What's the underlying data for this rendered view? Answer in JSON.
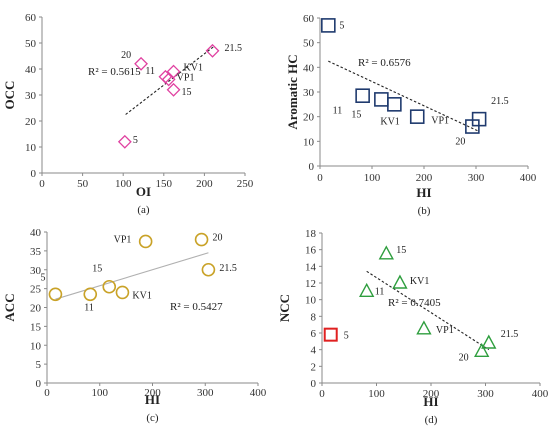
{
  "chart_data": [
    {
      "panel": "(a)",
      "type": "scatter",
      "xlabel": "OI",
      "ylabel": "OCC",
      "xlim": [
        0,
        250
      ],
      "ylim": [
        0,
        60
      ],
      "xticks": [
        "0",
        "50",
        "100",
        "150",
        "200",
        "250"
      ],
      "yticks": [
        "0",
        "10",
        "20",
        "30",
        "40",
        "50",
        "60"
      ],
      "marker": "diamond",
      "color": "#e040a0",
      "points": [
        {
          "label": "5",
          "x": 102,
          "y": 12
        },
        {
          "label": "20",
          "x": 122,
          "y": 42
        },
        {
          "label": "11",
          "x": 152,
          "y": 37
        },
        {
          "label": "KV1",
          "x": 162,
          "y": 39
        },
        {
          "label": "VP1",
          "x": 156,
          "y": 36
        },
        {
          "label": "15",
          "x": 162,
          "y": 32
        },
        {
          "label": "21.5",
          "x": 210,
          "y": 47
        }
      ],
      "trendline": {
        "x": [
          103,
          211
        ],
        "y": [
          22.5,
          48.5
        ]
      },
      "r2": "R² = 0.5615"
    },
    {
      "panel": "(b)",
      "type": "scatter",
      "xlabel": "HI",
      "ylabel": "Aromatic HC",
      "xlim": [
        0,
        400
      ],
      "ylim": [
        0,
        60
      ],
      "xticks": [
        "0",
        "100",
        "200",
        "300",
        "400"
      ],
      "yticks": [
        "0",
        "10",
        "20",
        "30",
        "40",
        "50",
        "60"
      ],
      "marker": "square",
      "color": "#1f3a6e",
      "points": [
        {
          "label": "5",
          "x": 16,
          "y": 57
        },
        {
          "label": "11",
          "x": 82,
          "y": 28.5
        },
        {
          "label": "15",
          "x": 118,
          "y": 27
        },
        {
          "label": "KV1",
          "x": 143,
          "y": 25
        },
        {
          "label": "VP1",
          "x": 187,
          "y": 20
        },
        {
          "label": "20",
          "x": 293,
          "y": 16
        },
        {
          "label": "21.5",
          "x": 306,
          "y": 19
        }
      ],
      "trendline": {
        "x": [
          16,
          306
        ],
        "y": [
          42.5,
          14
        ]
      },
      "r2": "R² = 0.6576"
    },
    {
      "panel": "(c)",
      "type": "scatter",
      "xlabel": "HI",
      "ylabel": "ACC",
      "xlim": [
        0,
        400
      ],
      "ylim": [
        0,
        40
      ],
      "xticks": [
        "0",
        "100",
        "200",
        "300",
        "400"
      ],
      "yticks": [
        "0",
        "5",
        "10",
        "15",
        "20",
        "25",
        "30",
        "35",
        "40"
      ],
      "marker": "circle",
      "color": "#c9a227",
      "points": [
        {
          "label": "5",
          "x": 16,
          "y": 23.5
        },
        {
          "label": "11",
          "x": 82,
          "y": 23.5
        },
        {
          "label": "15",
          "x": 118,
          "y": 25.5
        },
        {
          "label": "KV1",
          "x": 143,
          "y": 24
        },
        {
          "label": "VP1",
          "x": 187,
          "y": 37.5
        },
        {
          "label": "20",
          "x": 293,
          "y": 38
        },
        {
          "label": "21.5",
          "x": 306,
          "y": 30
        }
      ],
      "trendline": {
        "x": [
          16,
          306
        ],
        "y": [
          22.2,
          34.5
        ]
      },
      "r2": "R² = 0.5427"
    },
    {
      "panel": "(d)",
      "type": "scatter",
      "xlabel": "HI",
      "ylabel": "NCC",
      "xlim": [
        0,
        400
      ],
      "ylim": [
        0,
        18
      ],
      "xticks": [
        "0",
        "100",
        "200",
        "300",
        "400"
      ],
      "yticks": [
        "0",
        "2",
        "4",
        "6",
        "8",
        "10",
        "12",
        "14",
        "16",
        "18"
      ],
      "marker": "triangle",
      "color": "#2e9e3e",
      "outlier_color": "#e02020",
      "points": [
        {
          "label": "5",
          "x": 16,
          "y": 5.8,
          "outlier": true
        },
        {
          "label": "11",
          "x": 82,
          "y": 11
        },
        {
          "label": "15",
          "x": 118,
          "y": 15.5
        },
        {
          "label": "KV1",
          "x": 143,
          "y": 12
        },
        {
          "label": "VP1",
          "x": 187,
          "y": 6.5
        },
        {
          "label": "20",
          "x": 293,
          "y": 3.8
        },
        {
          "label": "21.5",
          "x": 306,
          "y": 4.8
        }
      ],
      "trendline": {
        "x": [
          82,
          306
        ],
        "y": [
          13.4,
          4.0
        ]
      },
      "r2": "R² = 0.7405"
    }
  ]
}
